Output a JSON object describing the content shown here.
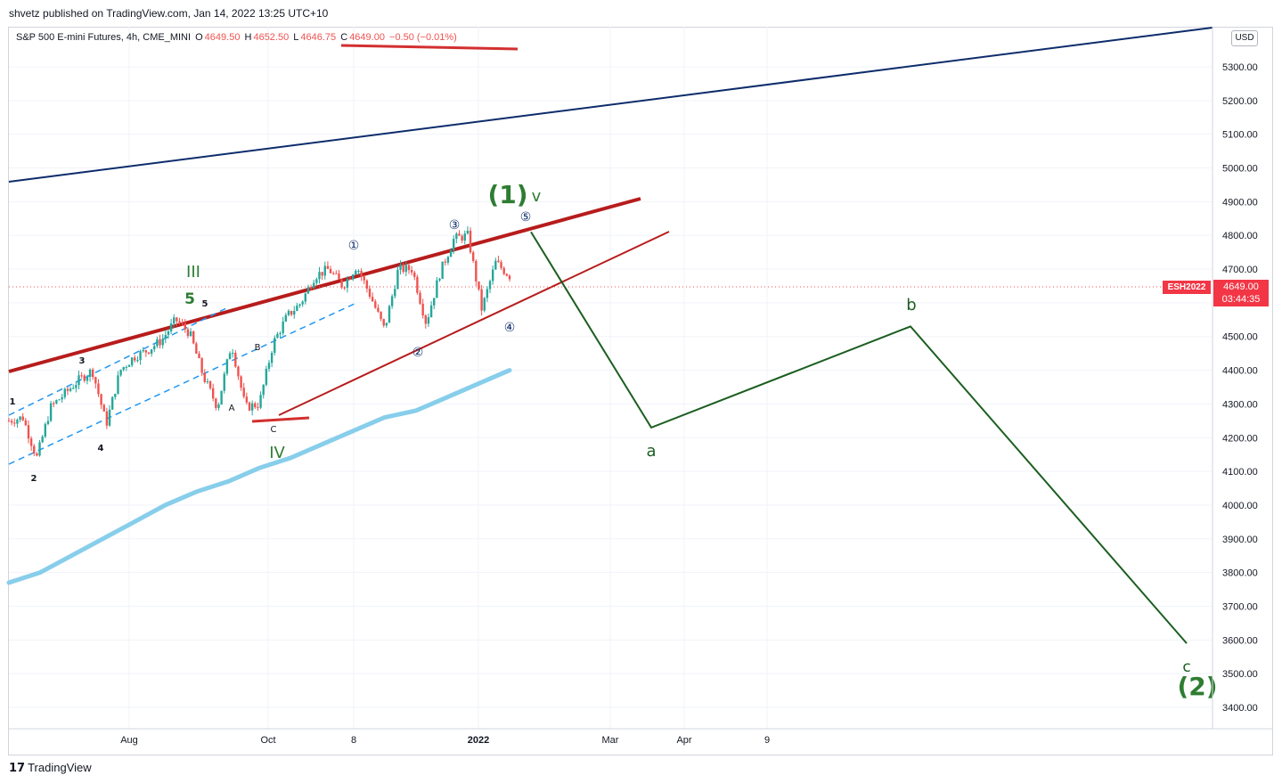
{
  "header": {
    "published": "shvetz published on TradingView.com, Jan 14, 2022 13:25 UTC+10"
  },
  "legend": {
    "symbol": "S&P 500 E-mini Futures, 4h, CME_MINI",
    "o_key": "O",
    "o_val": "4649.50",
    "h_key": "H",
    "h_val": "4652.50",
    "l_key": "L",
    "l_val": "4646.75",
    "c_key": "C",
    "c_val": "4649.00",
    "change": "−0.50 (−0.01%)"
  },
  "currency": "USD",
  "price_tag": {
    "symbol": "ESH2022",
    "price": "4649.00",
    "countdown": "03:44:35"
  },
  "footer": {
    "logo": "17",
    "brand": "TradingView"
  },
  "colors": {
    "up": "#26a69a",
    "down": "#ef5350",
    "wave_green": "#2e7d32",
    "projection": "#1b5e20",
    "channel_red": "#b71c1c",
    "navy": "#0d2c6b",
    "ma_blue": "#87ceeb",
    "dashed_blue": "#2196f3"
  },
  "chart_data": {
    "type": "line",
    "title": "",
    "xlabel": "",
    "ylabel": "",
    "ylim": [
      3350,
      5425
    ],
    "y_ticks": [
      "5300.00",
      "5200.00",
      "5100.00",
      "5000.00",
      "4900.00",
      "4800.00",
      "4700.00",
      "4600.00",
      "4500.00",
      "4400.00",
      "4300.00",
      "4200.00",
      "4100.00",
      "4000.00",
      "3900.00",
      "3800.00",
      "3700.00",
      "3600.00",
      "3500.00",
      "3400.00"
    ],
    "x_ticks": [
      "Aug",
      "Oct",
      "8",
      "2022",
      "Mar",
      "Apr",
      "9"
    ],
    "current_price": 4649.0,
    "series": [
      {
        "values": [
          4250,
          4260,
          4140,
          4290,
          4330,
          4370,
          4400,
          4240,
          4400,
          4440,
          4460,
          4490,
          4550,
          4510,
          4380,
          4290,
          4480,
          4290,
          4300,
          4480,
          4560,
          4600,
          4680,
          4700,
          4650,
          4710,
          4620,
          4520,
          4700,
          4700,
          4540,
          4690,
          4790,
          4800,
          4580,
          4720,
          4680
        ]
      },
      {
        "values": [
          3770,
          3800,
          3850,
          3900,
          3950,
          4000,
          4040,
          4070,
          4110,
          4140,
          4180,
          4220,
          4260,
          4280,
          4320,
          4360,
          4400
        ]
      },
      {
        "values": [
          4810,
          4230,
          4530,
          3590
        ]
      }
    ],
    "annotations": [
      {
        "label": "(1)",
        "x": "2022",
        "y": 4860
      },
      {
        "label": "v",
        "x": "2022",
        "y": 4880
      },
      {
        "label": "III",
        "x": "Aug",
        "y": 4730
      },
      {
        "label": "5",
        "x": "Aug",
        "y": 4650
      },
      {
        "label": "5",
        "x": "Aug",
        "y": 4640
      },
      {
        "label": "3",
        "x": "Aug",
        "y": 4425
      },
      {
        "label": "1",
        "x": "Aug",
        "y": 4310
      },
      {
        "label": "2",
        "x": "Aug",
        "y": 4080
      },
      {
        "label": "4",
        "x": "Aug",
        "y": 4180
      },
      {
        "label": "A",
        "x": "Oct",
        "y": 4285
      },
      {
        "label": "B",
        "x": "Oct",
        "y": 4495
      },
      {
        "label": "C",
        "x": "Oct",
        "y": 4225
      },
      {
        "label": "IV",
        "x": "Oct",
        "y": 4150
      },
      {
        "label": "①",
        "x": "8",
        "y": 4770
      },
      {
        "label": "②",
        "x": "8",
        "y": 4460
      },
      {
        "label": "③",
        "x": "2022",
        "y": 4840
      },
      {
        "label": "④",
        "x": "2022",
        "y": 4540
      },
      {
        "label": "⑤",
        "x": "2022",
        "y": 4855
      },
      {
        "label": "a",
        "x": "Mar",
        "y": 4165
      },
      {
        "label": "b",
        "x": "9",
        "y": 4580
      },
      {
        "label": "c",
        "x": "9",
        "y": 3520
      },
      {
        "label": "(2)",
        "x": "9",
        "y": 3460
      }
    ]
  }
}
